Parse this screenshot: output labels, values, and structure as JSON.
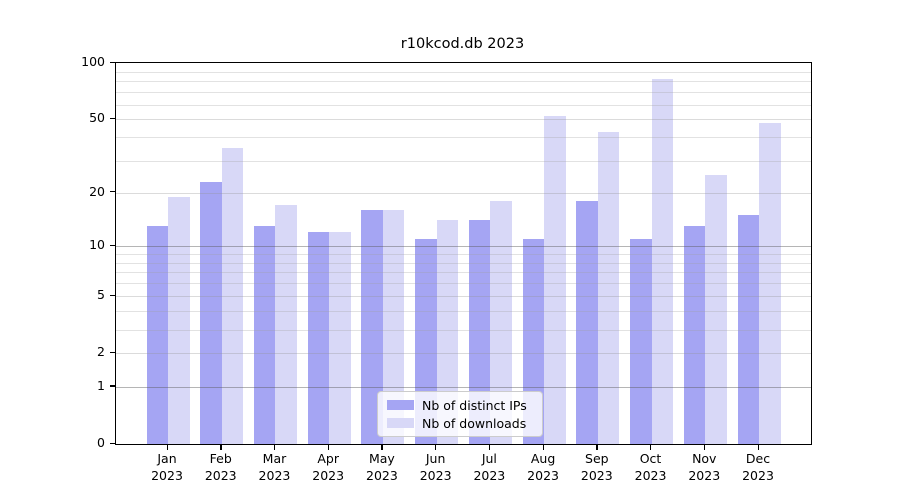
{
  "title": "r10kcod.db 2023",
  "chart_data": {
    "type": "bar",
    "title": "r10kcod.db 2023",
    "categories": [
      "Jan",
      "Feb",
      "Mar",
      "Apr",
      "May",
      "Jun",
      "Jul",
      "Aug",
      "Sep",
      "Oct",
      "Nov",
      "Dec"
    ],
    "x_sublabel": "2023",
    "series": [
      {
        "name": "Nb of distinct IPs",
        "color": "#a5a5f3",
        "values": [
          13,
          23,
          13,
          12,
          16,
          11,
          14,
          11,
          18,
          11,
          13,
          15
        ]
      },
      {
        "name": "Nb of downloads",
        "color": "#d8d8f7",
        "values": [
          19,
          35,
          17,
          12,
          16,
          14,
          18,
          52,
          43,
          82,
          25,
          48
        ]
      }
    ],
    "xlabel": "",
    "ylabel": "",
    "ylim": [
      0,
      100
    ],
    "y_scale": "log10(1+x)",
    "y_ticks": [
      0,
      1,
      2,
      5,
      10,
      20,
      50,
      100
    ],
    "y_strong_gridlines": [
      1,
      10
    ],
    "y_major_gridlines": [
      2,
      5,
      20,
      50
    ],
    "y_minor_gridlines": [
      3,
      4,
      6,
      7,
      8,
      9,
      30,
      40,
      60,
      70,
      80,
      90
    ],
    "grid": true,
    "legend_position": "bottom-center"
  }
}
